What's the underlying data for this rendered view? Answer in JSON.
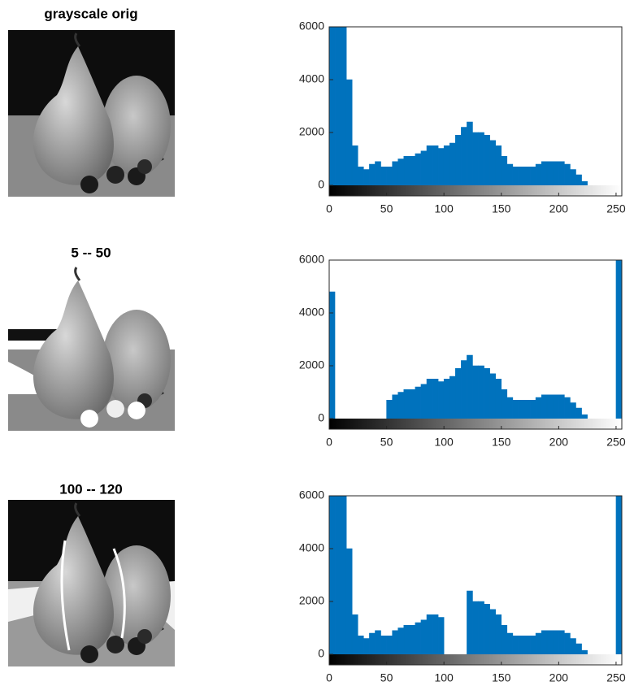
{
  "images": [
    {
      "title": "grayscale orig"
    },
    {
      "title": "5 -- 50"
    },
    {
      "title": "100 -- 120"
    }
  ],
  "chart_data": [
    {
      "type": "histogram",
      "color": "#0072bd",
      "bins": [
        0,
        5,
        10,
        15,
        20,
        25,
        30,
        35,
        40,
        45,
        50,
        55,
        60,
        65,
        70,
        75,
        80,
        85,
        90,
        95,
        100,
        105,
        110,
        115,
        120,
        125,
        130,
        135,
        140,
        145,
        150,
        155,
        160,
        165,
        170,
        175,
        180,
        185,
        190,
        195,
        200,
        205,
        210,
        215,
        220,
        225,
        230,
        235,
        240,
        245,
        250,
        255
      ],
      "counts": [
        6000,
        6000,
        6000,
        4000,
        1500,
        700,
        600,
        800,
        900,
        700,
        700,
        900,
        1000,
        1100,
        1100,
        1200,
        1300,
        1500,
        1500,
        1400,
        1500,
        1600,
        1900,
        2200,
        2400,
        2000,
        2000,
        1900,
        1700,
        1500,
        1100,
        800,
        700,
        700,
        700,
        700,
        800,
        900,
        900,
        900,
        900,
        800,
        600,
        400,
        150,
        0,
        0,
        0,
        0,
        0,
        0
      ],
      "xlim": [
        0,
        255
      ],
      "ylim": [
        0,
        6000
      ],
      "xticks": [
        0,
        50,
        100,
        150,
        200,
        250
      ],
      "yticks": [
        0,
        2000,
        4000,
        6000
      ]
    },
    {
      "type": "histogram",
      "color": "#0072bd",
      "bins": [
        0,
        5,
        10,
        15,
        20,
        25,
        30,
        35,
        40,
        45,
        50,
        55,
        60,
        65,
        70,
        75,
        80,
        85,
        90,
        95,
        100,
        105,
        110,
        115,
        120,
        125,
        130,
        135,
        140,
        145,
        150,
        155,
        160,
        165,
        170,
        175,
        180,
        185,
        190,
        195,
        200,
        205,
        210,
        215,
        220,
        225,
        230,
        235,
        240,
        245,
        250,
        255
      ],
      "counts": [
        4800,
        0,
        0,
        0,
        0,
        0,
        0,
        0,
        0,
        0,
        700,
        900,
        1000,
        1100,
        1100,
        1200,
        1300,
        1500,
        1500,
        1400,
        1500,
        1600,
        1900,
        2200,
        2400,
        2000,
        2000,
        1900,
        1700,
        1500,
        1100,
        800,
        700,
        700,
        700,
        700,
        800,
        900,
        900,
        900,
        900,
        800,
        600,
        400,
        150,
        0,
        0,
        0,
        0,
        0,
        6000
      ],
      "xlim": [
        0,
        255
      ],
      "ylim": [
        0,
        6000
      ],
      "xticks": [
        0,
        50,
        100,
        150,
        200,
        250
      ],
      "yticks": [
        0,
        2000,
        4000,
        6000
      ]
    },
    {
      "type": "histogram",
      "color": "#0072bd",
      "bins": [
        0,
        5,
        10,
        15,
        20,
        25,
        30,
        35,
        40,
        45,
        50,
        55,
        60,
        65,
        70,
        75,
        80,
        85,
        90,
        95,
        100,
        105,
        110,
        115,
        120,
        125,
        130,
        135,
        140,
        145,
        150,
        155,
        160,
        165,
        170,
        175,
        180,
        185,
        190,
        195,
        200,
        205,
        210,
        215,
        220,
        225,
        230,
        235,
        240,
        245,
        250,
        255
      ],
      "counts": [
        6000,
        6000,
        6000,
        4000,
        1500,
        700,
        600,
        800,
        900,
        700,
        700,
        900,
        1000,
        1100,
        1100,
        1200,
        1300,
        1500,
        1500,
        1400,
        0,
        0,
        0,
        0,
        2400,
        2000,
        2000,
        1900,
        1700,
        1500,
        1100,
        800,
        700,
        700,
        700,
        700,
        800,
        900,
        900,
        900,
        900,
        800,
        600,
        400,
        150,
        0,
        0,
        0,
        0,
        0,
        6000
      ],
      "xlim": [
        0,
        255
      ],
      "ylim": [
        0,
        6000
      ],
      "xticks": [
        0,
        50,
        100,
        150,
        200,
        250
      ],
      "yticks": [
        0,
        2000,
        4000,
        6000
      ]
    }
  ]
}
